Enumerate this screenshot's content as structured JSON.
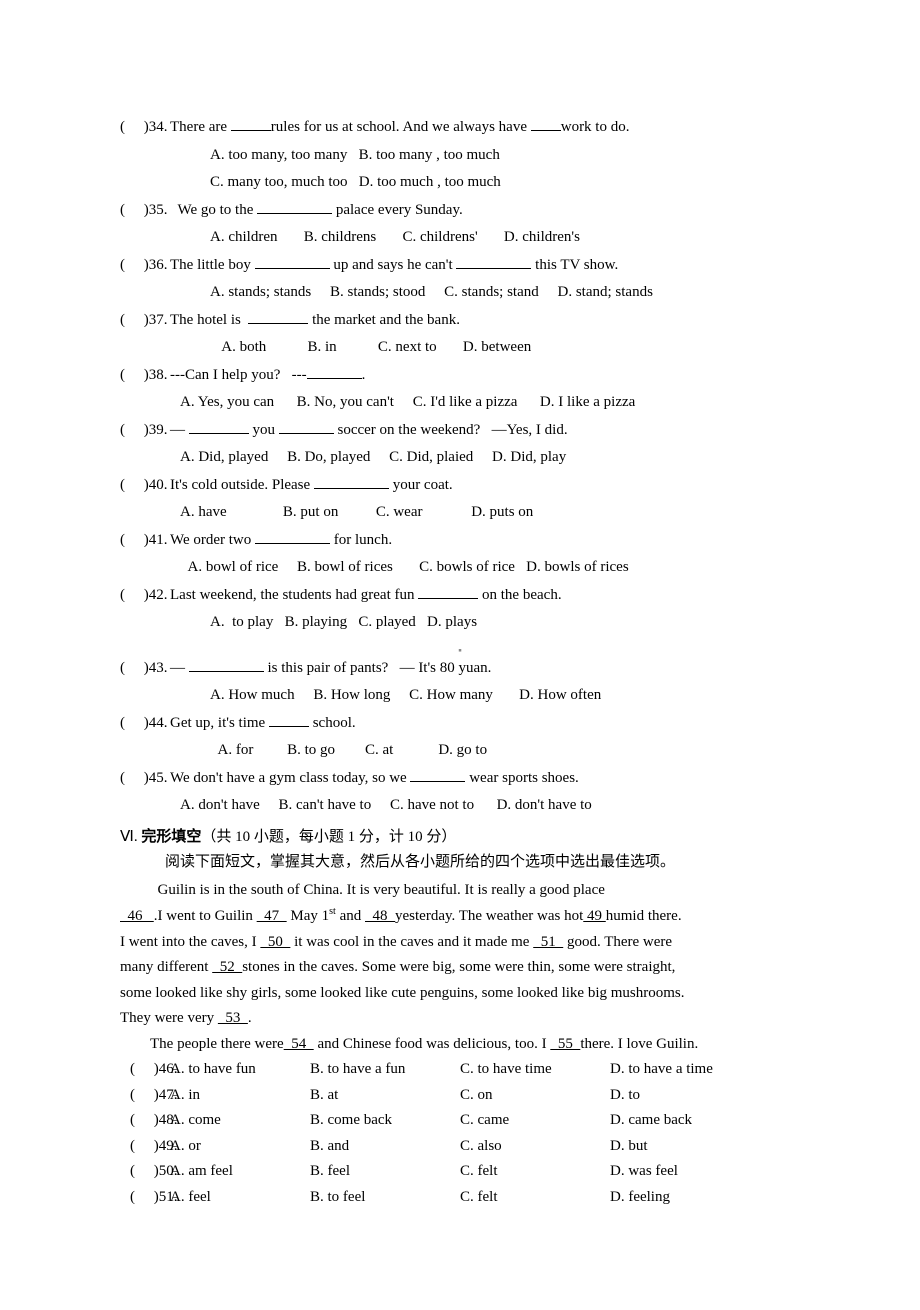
{
  "questions": [
    {
      "num": "34",
      "stem_html": "There are <span class='blank-s'></span>rules for us at school. And we always have <span class='blank-xs'></span>work to do.",
      "opt_lines": [
        "A. too many, too many&nbsp;&nbsp;&nbsp;B. too many , too much",
        "C. many too, much too&nbsp;&nbsp;&nbsp;D. too much , too much"
      ],
      "opt_cls": "options"
    },
    {
      "num": "35",
      "stem_html": "&nbsp;&nbsp;We go to the <span class='blank-l'></span> palace every Sunday.",
      "opt_lines": [
        "A. children&nbsp;&nbsp;&nbsp;&nbsp;&nbsp;&nbsp;&nbsp;B. childrens&nbsp;&nbsp;&nbsp;&nbsp;&nbsp;&nbsp;&nbsp;C. childrens'&nbsp;&nbsp;&nbsp;&nbsp;&nbsp;&nbsp;&nbsp;D. children's"
      ],
      "opt_cls": "options"
    },
    {
      "num": "36",
      "stem_html": "The little boy <span class='blank-l'></span> up and says he can't <span class='blank-l'></span> this TV show.",
      "opt_lines": [
        "A. stands; stands&nbsp;&nbsp;&nbsp;&nbsp;&nbsp;B. stands; stood&nbsp;&nbsp;&nbsp;&nbsp;&nbsp;C. stands; stand&nbsp;&nbsp;&nbsp;&nbsp;&nbsp;D. stand; stands"
      ],
      "opt_cls": "options"
    },
    {
      "num": "37",
      "stem_html": "The hotel is &nbsp;<span class='blank-m'></span> the market and the bank.",
      "opt_lines": [
        "&nbsp;&nbsp;&nbsp;A. both&nbsp;&nbsp;&nbsp;&nbsp;&nbsp;&nbsp;&nbsp;&nbsp;&nbsp;&nbsp;&nbsp;B. in&nbsp;&nbsp;&nbsp;&nbsp;&nbsp;&nbsp;&nbsp;&nbsp;&nbsp;&nbsp;&nbsp;C. next to&nbsp;&nbsp;&nbsp;&nbsp;&nbsp;&nbsp;&nbsp;D. between"
      ],
      "opt_cls": "options"
    },
    {
      "num": "38",
      "stem_html": "---Can I help you?&nbsp;&nbsp;&nbsp;---<span class='blank-xl'></span>.",
      "opt_lines": [
        "A. Yes, you can&nbsp;&nbsp;&nbsp;&nbsp;&nbsp;&nbsp;B. No, you can't&nbsp;&nbsp;&nbsp;&nbsp;&nbsp;C. I'd like a pizza&nbsp;&nbsp;&nbsp;&nbsp;&nbsp;&nbsp;D. I like a pizza"
      ],
      "opt_cls": "options-l2"
    },
    {
      "num": "39",
      "stem_html": "— <span class='blank-m'></span> you <span class='blank-xl'></span> soccer on the weekend?&nbsp;&nbsp;&nbsp;—Yes, I did.",
      "opt_lines": [
        "A. Did, played&nbsp;&nbsp;&nbsp;&nbsp;&nbsp;B. Do, played&nbsp;&nbsp;&nbsp;&nbsp;&nbsp;C. Did, plaied&nbsp;&nbsp;&nbsp;&nbsp;&nbsp;D. Did, play"
      ],
      "opt_cls": "options-l2"
    },
    {
      "num": "40",
      "stem_html": "It's cold outside. Please <span class='blank-l'></span> your coat.",
      "opt_lines": [
        "A. have&nbsp;&nbsp;&nbsp;&nbsp;&nbsp;&nbsp;&nbsp;&nbsp;&nbsp;&nbsp;&nbsp;&nbsp;&nbsp;&nbsp;&nbsp;B. put on&nbsp;&nbsp;&nbsp;&nbsp;&nbsp;&nbsp;&nbsp;&nbsp;&nbsp;&nbsp;C. wear&nbsp;&nbsp;&nbsp;&nbsp;&nbsp;&nbsp;&nbsp;&nbsp;&nbsp;&nbsp;&nbsp;&nbsp;&nbsp;D. puts on"
      ],
      "opt_cls": "options-l2"
    },
    {
      "num": "41",
      "stem_html": "We order two <span class='blank-l'></span> for lunch.",
      "opt_lines": [
        "&nbsp;&nbsp;A. bowl of rice&nbsp;&nbsp;&nbsp;&nbsp;&nbsp;B. bowl of rices&nbsp;&nbsp;&nbsp;&nbsp;&nbsp;&nbsp;&nbsp;C. bowls of rice&nbsp;&nbsp;&nbsp;D. bowls of rices"
      ],
      "opt_cls": "options-l2"
    },
    {
      "num": "42",
      "stem_html": "Last weekend, the students had great fun <span class='blank-m'></span> on the beach.",
      "opt_lines": [
        "A.&nbsp;&nbsp;to play&nbsp;&nbsp;&nbsp;B. playing&nbsp;&nbsp;&nbsp;C. played&nbsp;&nbsp;&nbsp;D. plays"
      ],
      "opt_cls": "options",
      "extra_gap": true
    },
    {
      "num": "43",
      "stem_html": "— <span class='blank-l'></span> is this pair of pants?&nbsp;&nbsp;&nbsp;— It's 80 yuan.",
      "opt_lines": [
        "A. How much&nbsp;&nbsp;&nbsp;&nbsp;&nbsp;B. How long&nbsp;&nbsp;&nbsp;&nbsp;&nbsp;C. How many&nbsp;&nbsp;&nbsp;&nbsp;&nbsp;&nbsp;&nbsp;D. How often"
      ],
      "opt_cls": "options"
    },
    {
      "num": "44",
      "stem_html": "Get up, it's time <span class='blank-s'></span> school.",
      "opt_lines": [
        "&nbsp;&nbsp;A. for&nbsp;&nbsp;&nbsp;&nbsp;&nbsp;&nbsp;&nbsp;&nbsp;&nbsp;B. to go&nbsp;&nbsp;&nbsp;&nbsp;&nbsp;&nbsp;&nbsp;&nbsp;C. at&nbsp;&nbsp;&nbsp;&nbsp;&nbsp;&nbsp;&nbsp;&nbsp;&nbsp;&nbsp;&nbsp;&nbsp;D. go to"
      ],
      "opt_cls": "options"
    },
    {
      "num": "45",
      "stem_html": "We don't have a gym class today, so we <span class='blank-xl'></span> wear sports shoes.",
      "opt_lines": [
        "A. don't have&nbsp;&nbsp;&nbsp;&nbsp;&nbsp;B. can't have to&nbsp;&nbsp;&nbsp;&nbsp;&nbsp;C. have not to&nbsp;&nbsp;&nbsp;&nbsp;&nbsp;&nbsp;D. don't have to"
      ],
      "opt_cls": "options-l2"
    }
  ],
  "section": {
    "heading_num": "Ⅵ.",
    "heading_bold": "完形填空",
    "heading_info": "（共 10 小题，每小题 1 分，计 10 分）",
    "sub": "阅读下面短文，掌握其大意，然后从各小题所给的四个选项中选出最佳选项。"
  },
  "passage": [
    {
      "indent": true,
      "html": "&nbsp;&nbsp;Guilin is in the south of China. It is very beautiful. It is really a good place"
    },
    {
      "indent": false,
      "html": "<span class='u'>&nbsp;&nbsp;46&nbsp;&nbsp;&nbsp;</span>.I went to Guilin <span class='u'>&nbsp;&nbsp;47&nbsp;&nbsp;</span> May 1<sup>st</sup> and <span class='u'>&nbsp;&nbsp;48&nbsp;&nbsp;</span>yesterday. The weather was hot<span class='u'>&nbsp;49&nbsp;</span>humid there."
    },
    {
      "indent": false,
      "html": "I went into the caves, I <span class='u'>&nbsp;&nbsp;50&nbsp;&nbsp;</span> it was cool in the caves and it made me <span class='u'>&nbsp;&nbsp;51&nbsp;&nbsp;</span> good. There were"
    },
    {
      "indent": false,
      "html": "many different <span class='u'>&nbsp;&nbsp;52&nbsp;&nbsp;</span>stones in the caves. Some were big, some were thin, some were straight,"
    },
    {
      "indent": false,
      "html": "some looked like shy girls, some looked like cute penguins, some looked like big mushrooms."
    },
    {
      "indent": false,
      "html": "They were very <span class='u'>&nbsp;&nbsp;53&nbsp;&nbsp;</span>."
    },
    {
      "indent": true,
      "html": "The people there were<span class='u'>&nbsp;&nbsp;54&nbsp;&nbsp;</span> and Chinese food was delicious, too. I <span class='u'>&nbsp;&nbsp;55&nbsp;&nbsp;</span>there. I love Guilin."
    }
  ],
  "cloze": [
    {
      "num": "46",
      "a": "A. to have fun",
      "b": "B. to have a fun",
      "c": "C. to have time",
      "d": "D. to have a time"
    },
    {
      "num": "47",
      "a": "A. in",
      "b": "B. at",
      "c": "C. on",
      "d": "D. to"
    },
    {
      "num": "48",
      "a": "A. come",
      "b": "B. come back",
      "c": "C. came",
      "d": "D. came back"
    },
    {
      "num": "49",
      "a": "A. or",
      "b": "B. and",
      "c": "C. also",
      "d": "D. but"
    },
    {
      "num": "50",
      "a": "A. am feel",
      "b": "B. feel",
      "c": "C. felt",
      "d": "D. was feel"
    },
    {
      "num": "51",
      "a": "A. feel",
      "b": "B. to feel",
      "c": "C. felt",
      "d": "D. feeling"
    }
  ],
  "paren_template": "(&nbsp;&nbsp;&nbsp;&nbsp;&nbsp;)"
}
